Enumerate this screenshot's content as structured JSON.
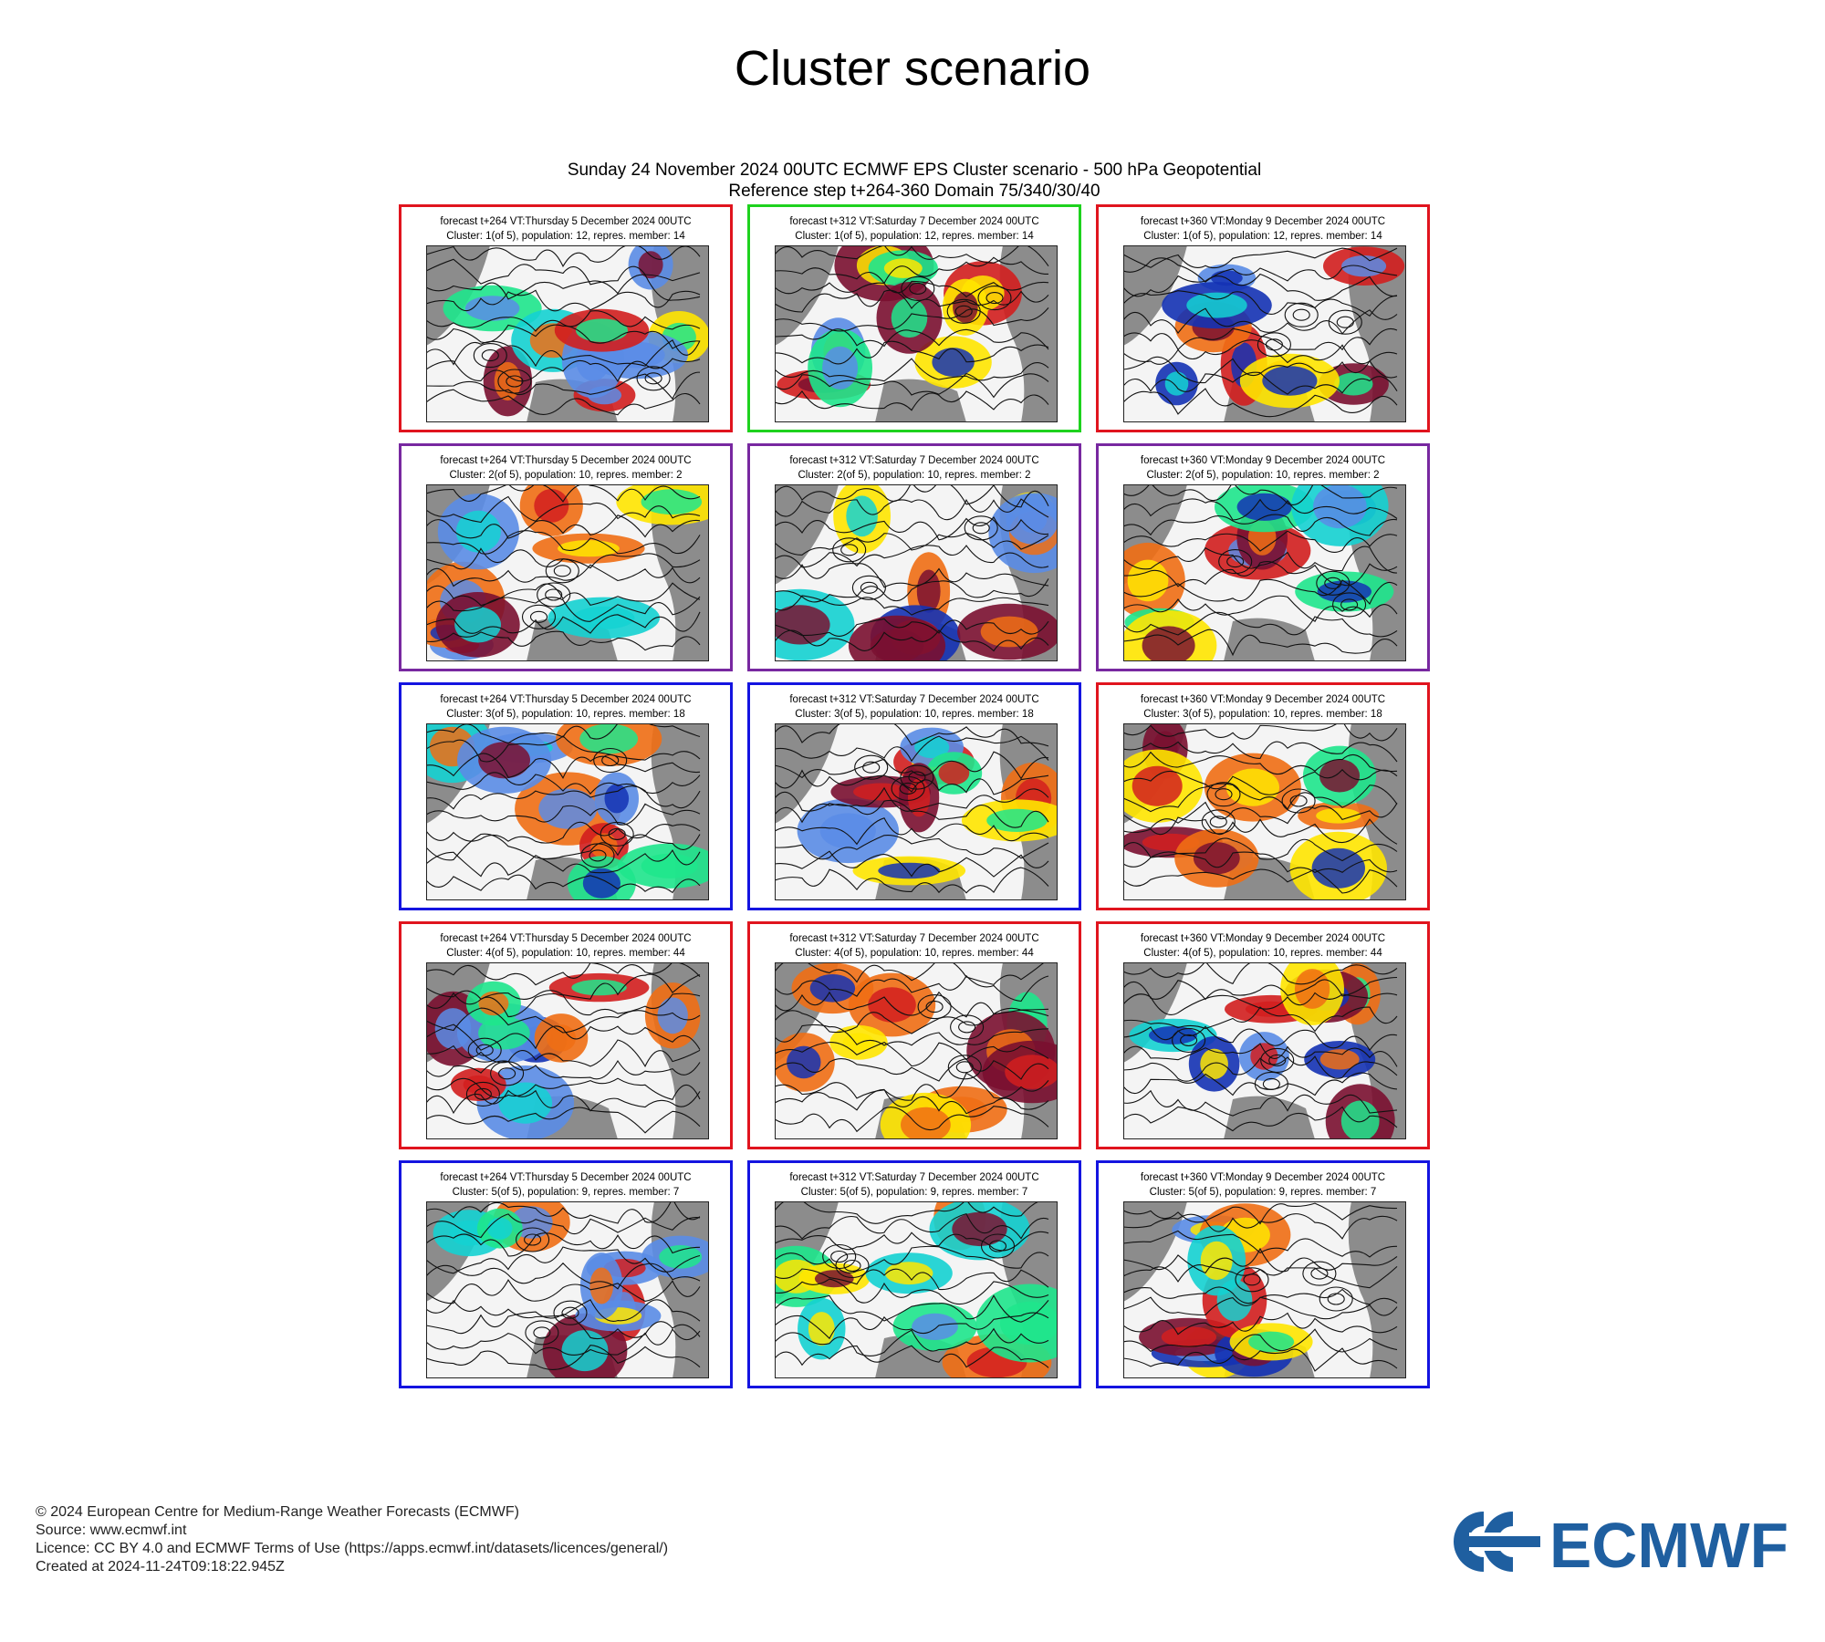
{
  "page": {
    "title": "Cluster scenario",
    "header_line1": "Sunday 24 November 2024 00UTC ECMWF EPS Cluster scenario - 500 hPa Geopotential",
    "header_line2": "Reference step t+264-360 Domain 75/340/30/40"
  },
  "panels": [
    {
      "line1": "forecast t+264 VT:Thursday 5 December 2024 00UTC",
      "line2": "Cluster: 1(of 5), population: 12, repres. member: 14",
      "frame_color": "#e0141e"
    },
    {
      "line1": "forecast t+312 VT:Saturday 7 December 2024 00UTC",
      "line2": "Cluster: 1(of 5), population: 12, repres. member: 14",
      "frame_color": "#1ed21e"
    },
    {
      "line1": "forecast t+360 VT:Monday 9 December 2024 00UTC",
      "line2": "Cluster: 1(of 5), population: 12, repres. member: 14",
      "frame_color": "#e0141e"
    },
    {
      "line1": "forecast t+264 VT:Thursday 5 December 2024 00UTC",
      "line2": "Cluster: 2(of 5), population: 10, repres. member: 2",
      "frame_color": "#7828a0"
    },
    {
      "line1": "forecast t+312 VT:Saturday 7 December 2024 00UTC",
      "line2": "Cluster: 2(of 5), population: 10, repres. member: 2",
      "frame_color": "#7828a0"
    },
    {
      "line1": "forecast t+360 VT:Monday 9 December 2024 00UTC",
      "line2": "Cluster: 2(of 5), population: 10, repres. member: 2",
      "frame_color": "#7828a0"
    },
    {
      "line1": "forecast t+264 VT:Thursday 5 December 2024 00UTC",
      "line2": "Cluster: 3(of 5), population: 10, repres. member: 18",
      "frame_color": "#1414e0"
    },
    {
      "line1": "forecast t+312 VT:Saturday 7 December 2024 00UTC",
      "line2": "Cluster: 3(of 5), population: 10, repres. member: 18",
      "frame_color": "#1414e0"
    },
    {
      "line1": "forecast t+360 VT:Monday 9 December 2024 00UTC",
      "line2": "Cluster: 3(of 5), population: 10, repres. member: 18",
      "frame_color": "#e0141e"
    },
    {
      "line1": "forecast t+264 VT:Thursday 5 December 2024 00UTC",
      "line2": "Cluster: 4(of 5), population: 10, repres. member: 44",
      "frame_color": "#e0141e"
    },
    {
      "line1": "forecast t+312 VT:Saturday 7 December 2024 00UTC",
      "line2": "Cluster: 4(of 5), population: 10, repres. member: 44",
      "frame_color": "#e0141e"
    },
    {
      "line1": "forecast t+360 VT:Monday 9 December 2024 00UTC",
      "line2": "Cluster: 4(of 5), population: 10, repres. member: 44",
      "frame_color": "#e0141e"
    },
    {
      "line1": "forecast t+264 VT:Thursday 5 December 2024 00UTC",
      "line2": "Cluster: 5(of 5), population: 9, repres. member: 7",
      "frame_color": "#1414e0"
    },
    {
      "line1": "forecast t+312 VT:Saturday 7 December 2024 00UTC",
      "line2": "Cluster: 5(of 5), population: 9, repres. member: 7",
      "frame_color": "#1414e0"
    },
    {
      "line1": "forecast t+360 VT:Monday 9 December 2024 00UTC",
      "line2": "Cluster: 5(of 5), population: 9, repres. member: 7",
      "frame_color": "#1414e0"
    }
  ],
  "footer": {
    "copyright": "© 2024 European Centre for Medium-Range Weather Forecasts (ECMWF)",
    "source": "Source: www.ecmwf.int",
    "licence": "Licence: CC BY 4.0 and ECMWF Terms of Use (https://apps.ecmwf.int/datasets/licences/general/)",
    "created": "Created at 2024-11-24T09:18:22.945Z"
  },
  "logo": {
    "text": "ECMWF",
    "color": "#1f5fa0"
  },
  "colors": {
    "land": "#8c8c8c",
    "anomaly_scale": [
      "#7a1030",
      "#d21e1e",
      "#f06e14",
      "#ffe600",
      "#1ee68c",
      "#14d2d2",
      "#5a8ce6",
      "#1432b4"
    ]
  }
}
